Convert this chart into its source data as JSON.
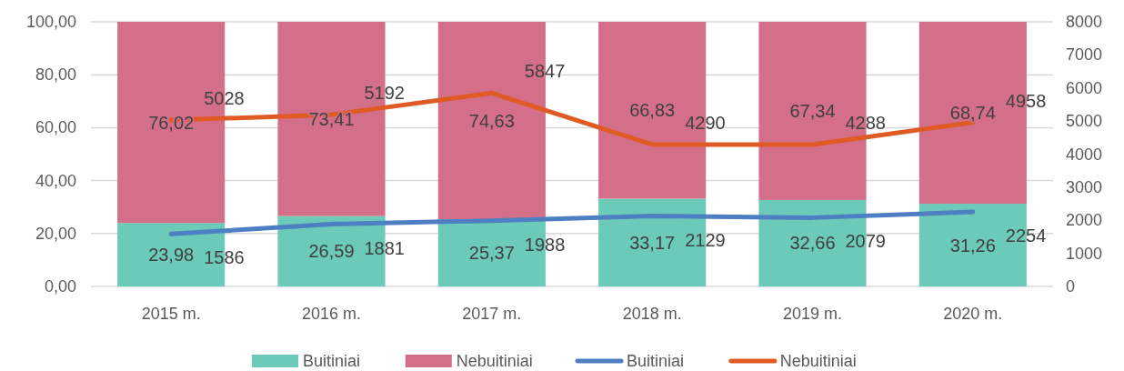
{
  "chart_data": {
    "type": "bar",
    "stacked": true,
    "categories": [
      "2015 m.",
      "2016 m.",
      "2017 m.",
      "2018 m.",
      "2019 m.",
      "2020 m."
    ],
    "series": [
      {
        "name": "Buitiniai",
        "color": "#6ccab9",
        "values": [
          23.98,
          26.59,
          25.37,
          33.17,
          32.66,
          31.26
        ],
        "value_labels": [
          "23,98",
          "26,59",
          "25,37",
          "33,17",
          "32,66",
          "31,26"
        ]
      },
      {
        "name": "Nebuitiniai",
        "color": "#d46f8a",
        "values": [
          76.02,
          73.41,
          74.63,
          66.83,
          67.34,
          68.74
        ],
        "value_labels": [
          "76,02",
          "73,41",
          "74,63",
          "66,83",
          "67,34",
          "68,74"
        ]
      },
      {
        "name": "Buitiniai",
        "type": "line",
        "axis": "y2",
        "color": "#4e7fc2",
        "values": [
          1586,
          1881,
          1988,
          2129,
          2079,
          2254
        ],
        "value_labels": [
          "1586",
          "1881",
          "1988",
          "2129",
          "2079",
          "2254"
        ]
      },
      {
        "name": "Nebuitiniai",
        "type": "line",
        "axis": "y2",
        "color": "#e05a24",
        "values": [
          5028,
          5192,
          5847,
          4290,
          4288,
          4958
        ],
        "value_labels": [
          "5028",
          "5192",
          "5847",
          "4290",
          "4288",
          "4958"
        ]
      }
    ],
    "ylim": [
      0,
      100
    ],
    "yticks": [
      {
        "value": 0,
        "label": "0,00"
      },
      {
        "value": 20,
        "label": "20,00"
      },
      {
        "value": 40,
        "label": "40,00"
      },
      {
        "value": 60,
        "label": "60,00"
      },
      {
        "value": 80,
        "label": "80,00"
      },
      {
        "value": 100,
        "label": "100,00"
      }
    ],
    "y2lim": [
      0,
      8000
    ],
    "y2ticks": [
      0,
      1000,
      2000,
      3000,
      4000,
      5000,
      6000,
      7000,
      8000
    ],
    "grid": "y",
    "legend": "bottom"
  }
}
